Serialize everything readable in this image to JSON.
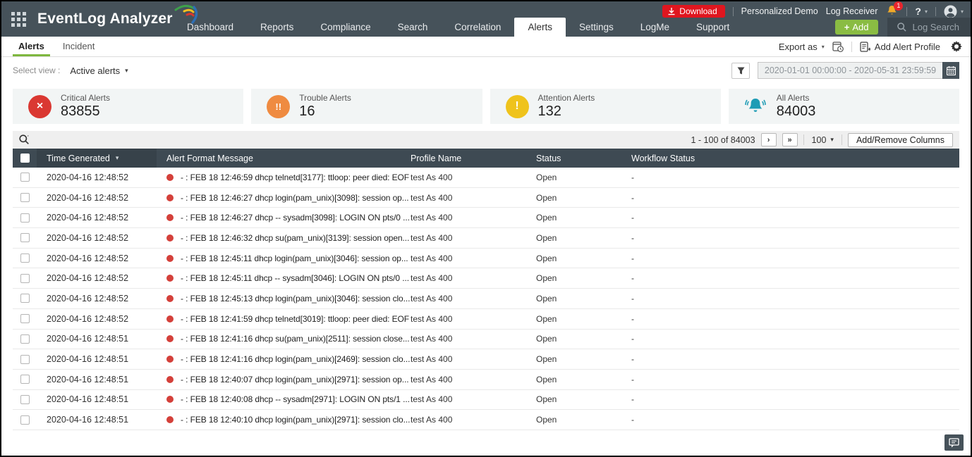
{
  "colors": {
    "header_bg": "#46525a",
    "accent_green": "#8abc43",
    "tab_underline_green": "#7eb73e",
    "download_red": "#e0161f",
    "severity_dot_red": "#d4403a",
    "critical_icon": "#da3832",
    "trouble_icon": "#ef8b41",
    "attention_icon": "#efc31c",
    "all_alerts_icon": "#1e9cb5",
    "table_header_bg": "#3e4a53"
  },
  "header": {
    "logo": "EventLog Analyzer",
    "nav": [
      "Dashboard",
      "Reports",
      "Compliance",
      "Search",
      "Correlation",
      "Alerts",
      "Settings",
      "LogMe",
      "Support"
    ],
    "active_nav": "Alerts",
    "topbar": {
      "download_label": "Download",
      "personalized_demo": "Personalized Demo",
      "log_receiver": "Log Receiver",
      "notification_count": "1",
      "help_label": "?",
      "add_plus": "+",
      "add_label": "Add",
      "log_search": "Log Search"
    }
  },
  "tabs": {
    "items": [
      "Alerts",
      "Incident"
    ],
    "active": "Alerts",
    "export_as": "Export as",
    "add_alert_profile": "Add Alert Profile"
  },
  "filters": {
    "select_view_label": "Select view :",
    "selected_view": "Active alerts",
    "date_range": "2020-01-01 00:00:00 - 2020-05-31 23:59:59"
  },
  "summary_cards": [
    {
      "label": "Critical Alerts",
      "value": "83855",
      "icon": "critical-circle-x-icon",
      "glyph": "×",
      "color": "#da3832"
    },
    {
      "label": "Trouble Alerts",
      "value": "16",
      "icon": "trouble-double-exclaim-icon",
      "glyph": "!!",
      "color": "#ef8b41"
    },
    {
      "label": "Attention Alerts",
      "value": "132",
      "icon": "attention-exclaim-icon",
      "glyph": "!",
      "color": "#efc31c"
    },
    {
      "label": "All Alerts",
      "value": "84003",
      "icon": "bell-icon",
      "glyph": "bell",
      "color": "#1e9cb5"
    }
  ],
  "toolbar": {
    "pagination": "1 - 100 of 84003",
    "next_label": "›",
    "last_label": "»",
    "page_size": "100",
    "add_remove_columns": "Add/Remove Columns"
  },
  "table": {
    "columns": [
      "Time Generated",
      "Alert Format Message",
      "Profile Name",
      "Status",
      "Workflow Status"
    ],
    "rows": [
      {
        "time": "2020-04-16 12:48:52",
        "message": "- : FEB 18 12:46:59 dhcp telnetd[3177]: ttloop: peer died: EOF",
        "profile": "test As 400",
        "status": "Open",
        "workflow": "-"
      },
      {
        "time": "2020-04-16 12:48:52",
        "message": "- : FEB 18 12:46:27 dhcp login(pam_unix)[3098]: session op...",
        "profile": "test As 400",
        "status": "Open",
        "workflow": "-"
      },
      {
        "time": "2020-04-16 12:48:52",
        "message": "- : FEB 18 12:46:27 dhcp -- sysadm[3098]: LOGIN ON pts/0 ...",
        "profile": "test As 400",
        "status": "Open",
        "workflow": "-"
      },
      {
        "time": "2020-04-16 12:48:52",
        "message": "- : FEB 18 12:46:32 dhcp su(pam_unix)[3139]: session open...",
        "profile": "test As 400",
        "status": "Open",
        "workflow": "-"
      },
      {
        "time": "2020-04-16 12:48:52",
        "message": "- : FEB 18 12:45:11 dhcp login(pam_unix)[3046]: session op...",
        "profile": "test As 400",
        "status": "Open",
        "workflow": "-"
      },
      {
        "time": "2020-04-16 12:48:52",
        "message": "- : FEB 18 12:45:11 dhcp -- sysadm[3046]: LOGIN ON pts/0 ...",
        "profile": "test As 400",
        "status": "Open",
        "workflow": "-"
      },
      {
        "time": "2020-04-16 12:48:52",
        "message": "- : FEB 18 12:45:13 dhcp login(pam_unix)[3046]: session clo...",
        "profile": "test As 400",
        "status": "Open",
        "workflow": "-"
      },
      {
        "time": "2020-04-16 12:48:52",
        "message": "- : FEB 18 12:41:59 dhcp telnetd[3019]: ttloop: peer died: EOF",
        "profile": "test As 400",
        "status": "Open",
        "workflow": "-"
      },
      {
        "time": "2020-04-16 12:48:51",
        "message": "- : FEB 18 12:41:16 dhcp su(pam_unix)[2511]: session close...",
        "profile": "test As 400",
        "status": "Open",
        "workflow": "-"
      },
      {
        "time": "2020-04-16 12:48:51",
        "message": "- : FEB 18 12:41:16 dhcp login(pam_unix)[2469]: session clo...",
        "profile": "test As 400",
        "status": "Open",
        "workflow": "-"
      },
      {
        "time": "2020-04-16 12:48:51",
        "message": "- : FEB 18 12:40:07 dhcp login(pam_unix)[2971]: session op...",
        "profile": "test As 400",
        "status": "Open",
        "workflow": "-"
      },
      {
        "time": "2020-04-16 12:48:51",
        "message": "- : FEB 18 12:40:08 dhcp -- sysadm[2971]: LOGIN ON pts/1 ...",
        "profile": "test As 400",
        "status": "Open",
        "workflow": "-"
      },
      {
        "time": "2020-04-16 12:48:51",
        "message": "- : FEB 18 12:40:10 dhcp login(pam_unix)[2971]: session clo...",
        "profile": "test As 400",
        "status": "Open",
        "workflow": "-"
      }
    ]
  }
}
